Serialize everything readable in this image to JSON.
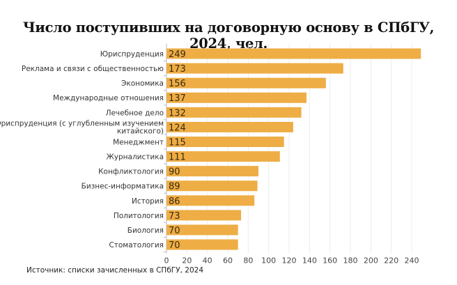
{
  "chart_data": {
    "type": "bar",
    "orientation": "horizontal",
    "title": "Число поступивших на договорную основу в СПбГУ, 2024, чел.",
    "source": "Источник: списки зачисленных в СПбГУ, 2024",
    "categories": [
      "Юриспруденция",
      "Реклама и связи с общественностью",
      "Экономика",
      "Международные отношения",
      "Лечебное дело",
      [
        "Юриспруденция (с углубленным изучением",
        "китайского)"
      ],
      "Менеджмент",
      "Журналистика",
      "Конфликтология",
      "Бизнес-информатика",
      "История",
      "Политология",
      "Биология",
      "Стоматология"
    ],
    "values": [
      249,
      173,
      156,
      137,
      132,
      124,
      115,
      111,
      90,
      89,
      86,
      73,
      70,
      70
    ],
    "xlim": [
      0,
      250
    ],
    "xticks": [
      0,
      20,
      40,
      60,
      80,
      100,
      120,
      140,
      160,
      180,
      200,
      220,
      240
    ],
    "grid": true,
    "bar_color": "#eead45",
    "xlabel": "",
    "ylabel": ""
  }
}
